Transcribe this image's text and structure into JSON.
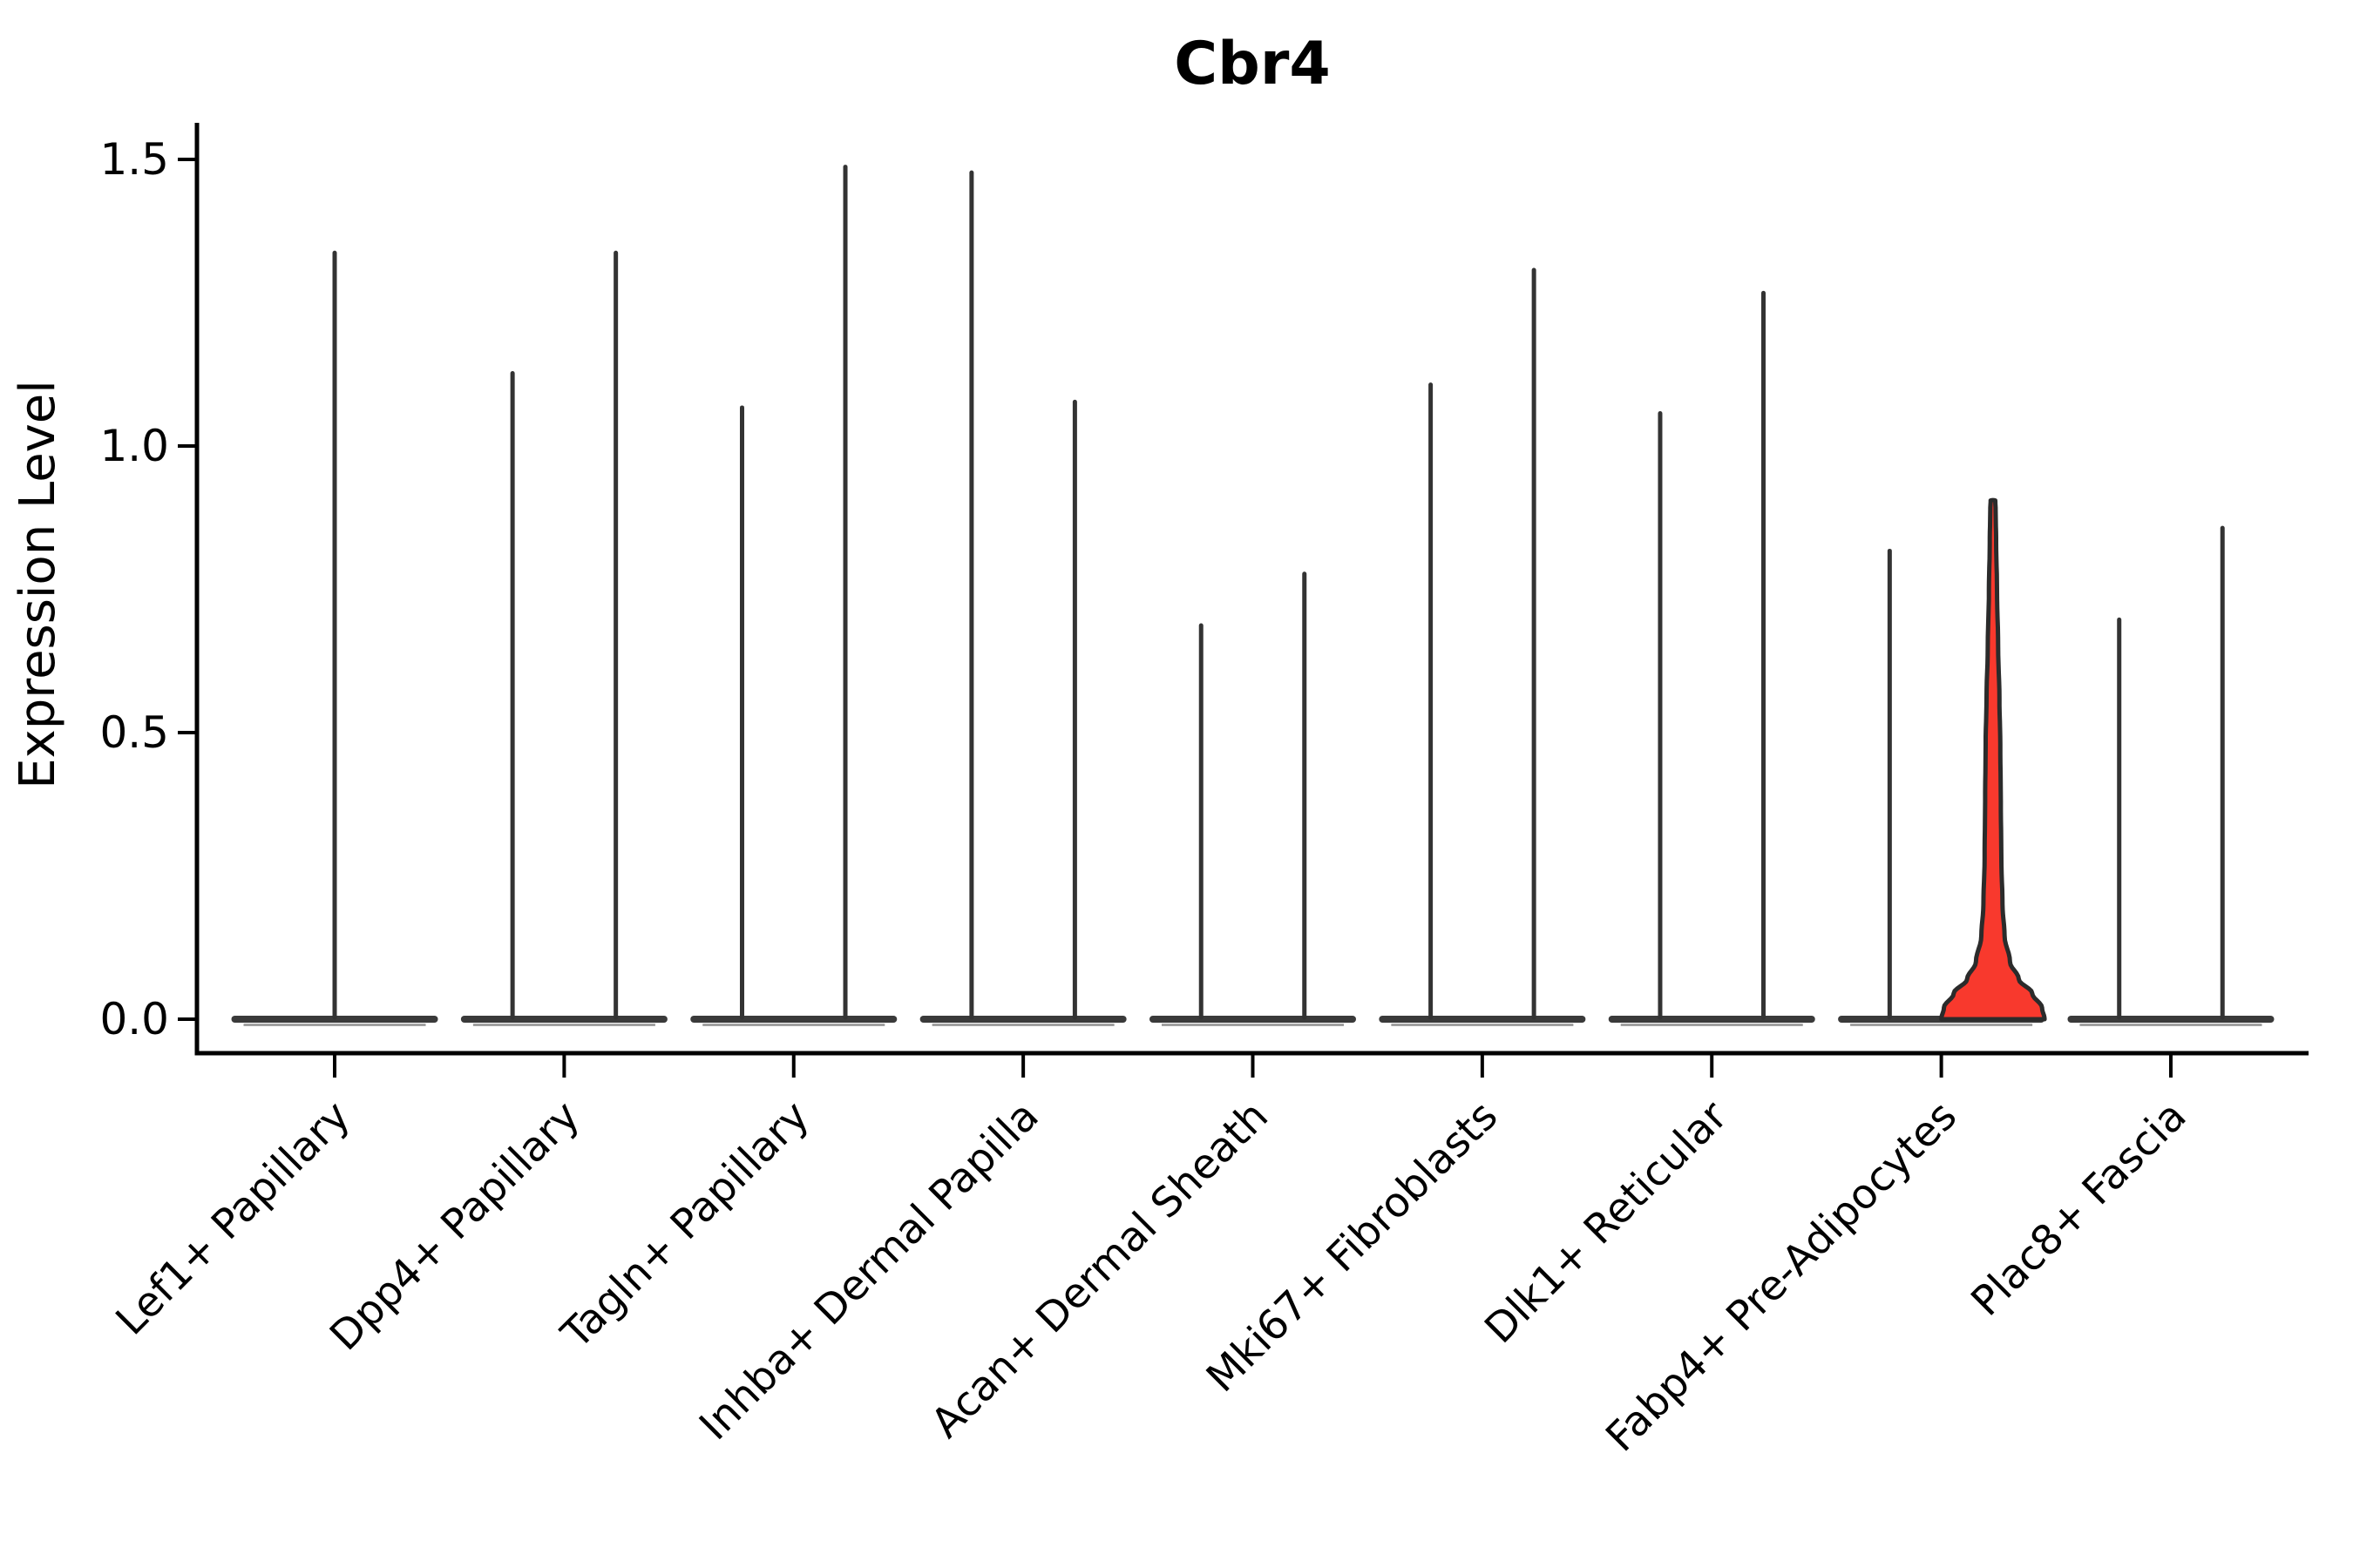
{
  "title": "Cbr4",
  "colors": {
    "highlight_fill": "#F8392D",
    "violin_stroke": "#333333",
    "highlight_stroke": "#2B2B2B",
    "baseline": "#3A3A3A",
    "baseline_shadow": "#A0A0A0",
    "axis": "#000000",
    "background": "#FFFFFF"
  },
  "chart_data": {
    "type": "violin",
    "title": "Cbr4",
    "xlabel": "",
    "ylabel": "Expression Level",
    "ylim": [
      -0.06,
      1.56
    ],
    "y_ticks": [
      "0.0",
      "0.5",
      "1.0",
      "1.5"
    ],
    "y_tick_values": [
      0.0,
      0.5,
      1.0,
      1.5
    ],
    "grid": "off",
    "legend": "none",
    "x_tick_rotation_deg": 45,
    "categories": [
      "Lef1+ Papillary",
      "Dpp4+ Papillary",
      "Tagln+ Papillary",
      "Inhba+ Dermal Papilla",
      "Acan+ Dermal Sheath",
      "Mki67+ Fibroblasts",
      "Dlk1+ Reticular",
      "Fabp4+ Pre-Adipocytes",
      "Plac8+ Fascia"
    ],
    "violins": [
      {
        "category_index": 0,
        "category": "Lef1+ Papillary",
        "slot": "center",
        "max_expression": 1.34,
        "bulk_at_zero": true,
        "highlighted": false
      },
      {
        "category_index": 1,
        "category": "Dpp4+ Papillary",
        "slot": "left",
        "max_expression": 1.13,
        "bulk_at_zero": true,
        "highlighted": false
      },
      {
        "category_index": 1,
        "category": "Dpp4+ Papillary",
        "slot": "right",
        "max_expression": 1.34,
        "bulk_at_zero": true,
        "highlighted": false
      },
      {
        "category_index": 2,
        "category": "Tagln+ Papillary",
        "slot": "left",
        "max_expression": 1.07,
        "bulk_at_zero": true,
        "highlighted": false
      },
      {
        "category_index": 2,
        "category": "Tagln+ Papillary",
        "slot": "right",
        "max_expression": 1.49,
        "bulk_at_zero": true,
        "highlighted": false
      },
      {
        "category_index": 3,
        "category": "Inhba+ Dermal Papilla",
        "slot": "left",
        "max_expression": 1.48,
        "bulk_at_zero": true,
        "highlighted": false
      },
      {
        "category_index": 3,
        "category": "Inhba+ Dermal Papilla",
        "slot": "right",
        "max_expression": 1.08,
        "bulk_at_zero": true,
        "highlighted": false
      },
      {
        "category_index": 4,
        "category": "Acan+ Dermal Sheath",
        "slot": "left",
        "max_expression": 0.69,
        "bulk_at_zero": true,
        "highlighted": false
      },
      {
        "category_index": 4,
        "category": "Acan+ Dermal Sheath",
        "slot": "right",
        "max_expression": 0.78,
        "bulk_at_zero": true,
        "highlighted": false
      },
      {
        "category_index": 5,
        "category": "Mki67+ Fibroblasts",
        "slot": "left",
        "max_expression": 1.11,
        "bulk_at_zero": true,
        "highlighted": false
      },
      {
        "category_index": 5,
        "category": "Mki67+ Fibroblasts",
        "slot": "right",
        "max_expression": 1.31,
        "bulk_at_zero": true,
        "highlighted": false
      },
      {
        "category_index": 6,
        "category": "Dlk1+ Reticular",
        "slot": "left",
        "max_expression": 1.06,
        "bulk_at_zero": true,
        "highlighted": false
      },
      {
        "category_index": 6,
        "category": "Dlk1+ Reticular",
        "slot": "right",
        "max_expression": 1.27,
        "bulk_at_zero": true,
        "highlighted": false
      },
      {
        "category_index": 7,
        "category": "Fabp4+ Pre-Adipocytes",
        "slot": "left",
        "max_expression": 0.82,
        "bulk_at_zero": true,
        "highlighted": false
      },
      {
        "category_index": 7,
        "category": "Fabp4+ Pre-Adipocytes",
        "slot": "right",
        "max_expression": 0.9,
        "bulk_at_zero": true,
        "highlighted": true
      },
      {
        "category_index": 8,
        "category": "Plac8+ Fascia",
        "slot": "left",
        "max_expression": 0.7,
        "bulk_at_zero": true,
        "highlighted": false
      },
      {
        "category_index": 8,
        "category": "Plac8+ Fascia",
        "slot": "right",
        "max_expression": 0.86,
        "bulk_at_zero": true,
        "highlighted": false
      }
    ],
    "highlight_profile": [
      [
        0.0,
        1.0
      ],
      [
        0.02,
        0.95
      ],
      [
        0.045,
        0.76
      ],
      [
        0.07,
        0.5
      ],
      [
        0.1,
        0.33
      ],
      [
        0.145,
        0.225
      ],
      [
        0.2,
        0.185
      ],
      [
        0.28,
        0.162
      ],
      [
        0.38,
        0.152
      ],
      [
        0.48,
        0.142
      ],
      [
        0.56,
        0.125
      ],
      [
        0.65,
        0.1
      ],
      [
        0.75,
        0.078
      ],
      [
        0.83,
        0.062
      ],
      [
        0.89,
        0.052
      ],
      [
        0.905,
        0.045
      ]
    ]
  }
}
